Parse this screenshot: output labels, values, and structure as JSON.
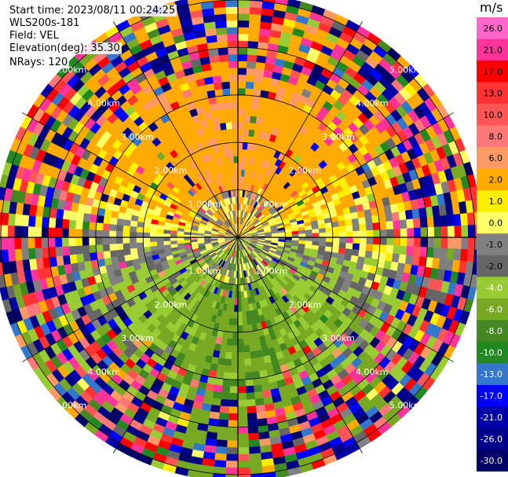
{
  "header": {
    "start_time": "Start time: 2023/08/11 00:24:25",
    "instrument": "WLS200s-181",
    "field": "Field: VEL",
    "elevation": "Elevation(deg): 35.30",
    "nrays": "NRays: 120"
  },
  "colorbar": {
    "unit": "m/s",
    "ticks": [
      "26.0",
      "21.0",
      "17.0",
      "13.0",
      "10.0",
      "8.0",
      "6.0",
      "2.0",
      "1.0",
      "0.0",
      "-1.0",
      "-2.0",
      "-4.0",
      "-6.0",
      "-8.0",
      "-10.0",
      "-13.0",
      "-17.0",
      "-21.0",
      "-26.0",
      "-30.0"
    ],
    "colors": [
      "#ff66cc",
      "#ff3399",
      "#ff0000",
      "#ff3333",
      "#ff5555",
      "#ff7777",
      "#ff9966",
      "#ffaa00",
      "#ffee00",
      "#ffff66",
      "#808080",
      "#666666",
      "#99cc33",
      "#77aa22",
      "#448822",
      "#228822",
      "#3377cc",
      "#0000ff",
      "#0000aa",
      "#000088",
      "#000066"
    ]
  },
  "chart_data": {
    "type": "heatmap",
    "subtype": "polar PPI scan",
    "field": "VEL",
    "units": "m/s",
    "elevation_deg": 35.3,
    "n_rays": 120,
    "range_rings_km": [
      1.0,
      2.0,
      3.0,
      4.0,
      5.0
    ],
    "range_ring_labels": [
      "1.00km",
      "2.00km",
      "3.00km",
      "4.00km",
      "5.00km"
    ],
    "color_scale_min": -30.0,
    "color_scale_max": 26.0,
    "pattern": {
      "north_inner": "yellow/orange (approx +1 to +8 m/s)",
      "south_inner": "green (approx -2 to -8 m/s)",
      "center": "gray (approx 0 m/s)",
      "outer": "noisy mixed colors across full scale"
    }
  }
}
